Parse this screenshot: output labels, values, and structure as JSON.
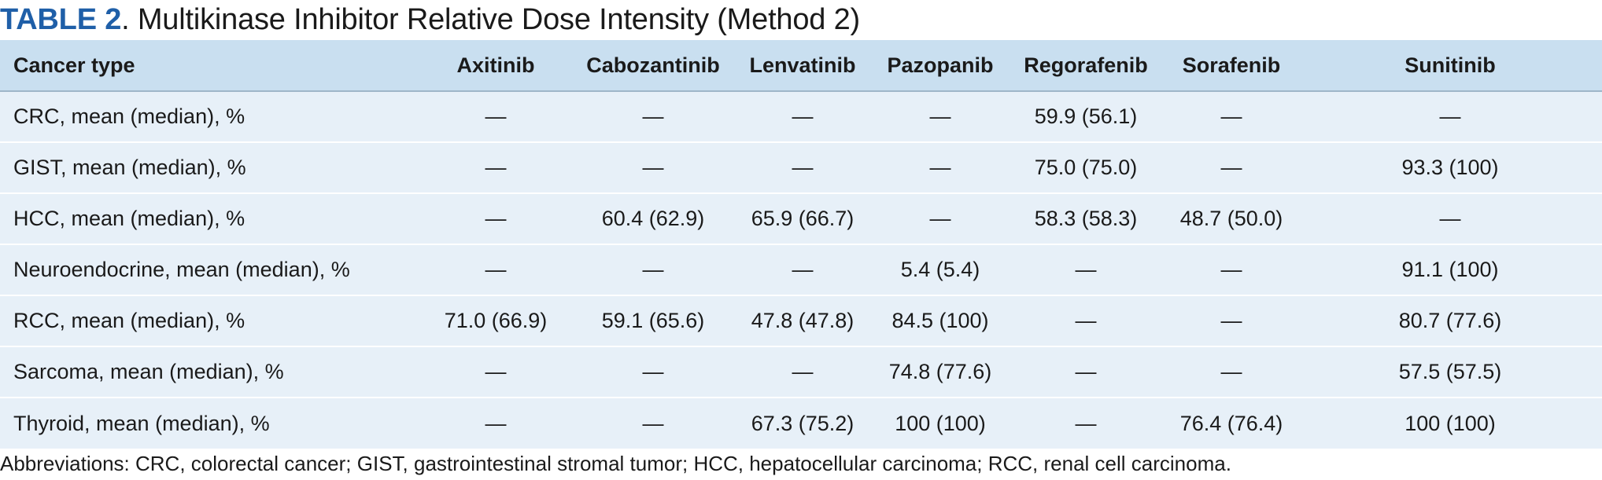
{
  "title": {
    "label": "TABLE 2",
    "text": ". Multikinase Inhibitor Relative Dose Intensity (Method 2)"
  },
  "table": {
    "columns": [
      "Cancer type",
      "Axitinib",
      "Cabozantinib",
      "Lenvatinib",
      "Pazopanib",
      "Regorafenib",
      "Sorafenib",
      "Sunitinib"
    ],
    "rows": [
      [
        "CRC, mean (median), %",
        "—",
        "—",
        "—",
        "—",
        "59.9 (56.1)",
        "—",
        "—"
      ],
      [
        "GIST, mean (median), %",
        "—",
        "—",
        "—",
        "—",
        "75.0 (75.0)",
        "—",
        "93.3 (100)"
      ],
      [
        "HCC, mean (median), %",
        "—",
        "60.4 (62.9)",
        "65.9 (66.7)",
        "—",
        "58.3 (58.3)",
        "48.7 (50.0)",
        "—"
      ],
      [
        "Neuroendocrine, mean (median), %",
        "—",
        "—",
        "—",
        "5.4 (5.4)",
        "—",
        "—",
        "91.1 (100)"
      ],
      [
        "RCC, mean (median), %",
        "71.0 (66.9)",
        "59.1 (65.6)",
        "47.8 (47.8)",
        "84.5 (100)",
        "—",
        "—",
        "80.7 (77.6)"
      ],
      [
        "Sarcoma, mean (median), %",
        "—",
        "—",
        "—",
        "74.8 (77.6)",
        "—",
        "—",
        "57.5 (57.5)"
      ],
      [
        "Thyroid, mean (median), %",
        "—",
        "—",
        "67.3 (75.2)",
        "100 (100)",
        "—",
        "76.4 (76.4)",
        "100 (100)"
      ]
    ]
  },
  "footnote": "Abbreviations: CRC, colorectal cancer; GIST, gastrointestinal stromal tumor; HCC, hepatocellular carcinoma; RCC, renal cell carcinoma.",
  "colors": {
    "title_label": "#1f5fa8",
    "header_bg": "#c9dff0",
    "row_bg": "#e7f0f8"
  }
}
